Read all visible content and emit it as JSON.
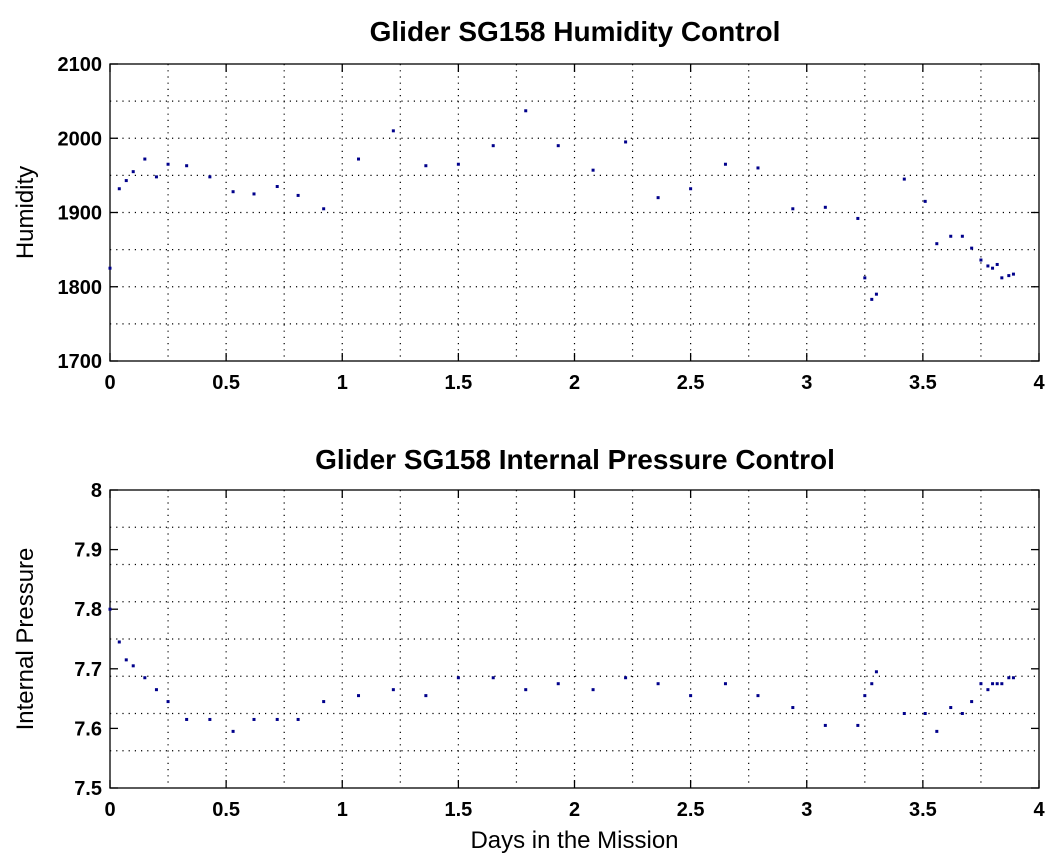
{
  "chart_data": [
    {
      "type": "scatter",
      "title": "Glider SG158 Humidity Control",
      "xlabel": "",
      "ylabel": "Humidity",
      "xlim": [
        0,
        4
      ],
      "ylim": [
        1700,
        2100
      ],
      "xticks": [
        "0",
        "0.5",
        "1",
        "1.5",
        "2",
        "2.5",
        "3",
        "3.5",
        "4"
      ],
      "yticks": [
        "1700",
        "1800",
        "1900",
        "2000",
        "2100"
      ],
      "grid": true,
      "color": "#00008b",
      "series": [
        {
          "x": [
            0.0,
            0.04,
            0.07,
            0.1,
            0.15,
            0.2,
            0.25,
            0.33,
            0.43,
            0.53,
            0.62,
            0.72,
            0.81,
            0.92,
            1.07,
            1.22,
            1.36,
            1.5,
            1.65,
            1.79,
            1.93,
            2.08,
            2.22,
            2.36,
            2.5,
            2.65,
            2.79,
            2.94,
            3.08,
            3.22,
            3.25,
            3.28,
            3.3,
            3.42,
            3.51,
            3.56,
            3.62,
            3.67,
            3.71,
            3.75,
            3.78,
            3.8,
            3.82,
            3.84,
            3.87,
            3.89
          ],
          "y": [
            1825,
            1932,
            1943,
            1955,
            1972,
            1948,
            1965,
            1963,
            1948,
            1928,
            1925,
            1935,
            1923,
            1905,
            1972,
            2010,
            1963,
            1965,
            1990,
            2037,
            1990,
            1957,
            1995,
            1920,
            1932,
            1965,
            1960,
            1905,
            1907,
            1892,
            1812,
            1783,
            1790,
            1945,
            1915,
            1858,
            1868,
            1868,
            1852,
            1836,
            1828,
            1825,
            1830,
            1812,
            1815,
            1817
          ]
        }
      ]
    },
    {
      "type": "scatter",
      "title": "Glider SG158 Internal Pressure Control",
      "xlabel": "Days in the Mission",
      "ylabel": "Internal Pressure",
      "xlim": [
        0,
        4
      ],
      "ylim": [
        7.5,
        8
      ],
      "xticks": [
        "0",
        "0.5",
        "1",
        "1.5",
        "2",
        "2.5",
        "3",
        "3.5",
        "4"
      ],
      "yticks": [
        "7.5",
        "7.6",
        "7.7",
        "7.8",
        "7.9",
        "8"
      ],
      "grid": true,
      "color": "#00008b",
      "series": [
        {
          "x": [
            0.0,
            0.04,
            0.07,
            0.1,
            0.15,
            0.2,
            0.25,
            0.33,
            0.43,
            0.53,
            0.62,
            0.72,
            0.81,
            0.92,
            1.07,
            1.22,
            1.36,
            1.5,
            1.65,
            1.79,
            1.93,
            2.08,
            2.22,
            2.36,
            2.5,
            2.65,
            2.79,
            2.94,
            3.08,
            3.22,
            3.25,
            3.28,
            3.3,
            3.42,
            3.51,
            3.56,
            3.62,
            3.67,
            3.71,
            3.75,
            3.78,
            3.8,
            3.82,
            3.84,
            3.87,
            3.89
          ],
          "y": [
            7.8,
            7.745,
            7.715,
            7.705,
            7.685,
            7.665,
            7.645,
            7.615,
            7.615,
            7.595,
            7.615,
            7.615,
            7.615,
            7.645,
            7.655,
            7.665,
            7.655,
            7.685,
            7.685,
            7.665,
            7.675,
            7.665,
            7.685,
            7.675,
            7.655,
            7.675,
            7.655,
            7.635,
            7.605,
            7.605,
            7.655,
            7.675,
            7.695,
            7.625,
            7.625,
            7.595,
            7.635,
            7.625,
            7.645,
            7.675,
            7.665,
            7.675,
            7.675,
            7.675,
            7.685,
            7.685
          ]
        }
      ]
    }
  ]
}
